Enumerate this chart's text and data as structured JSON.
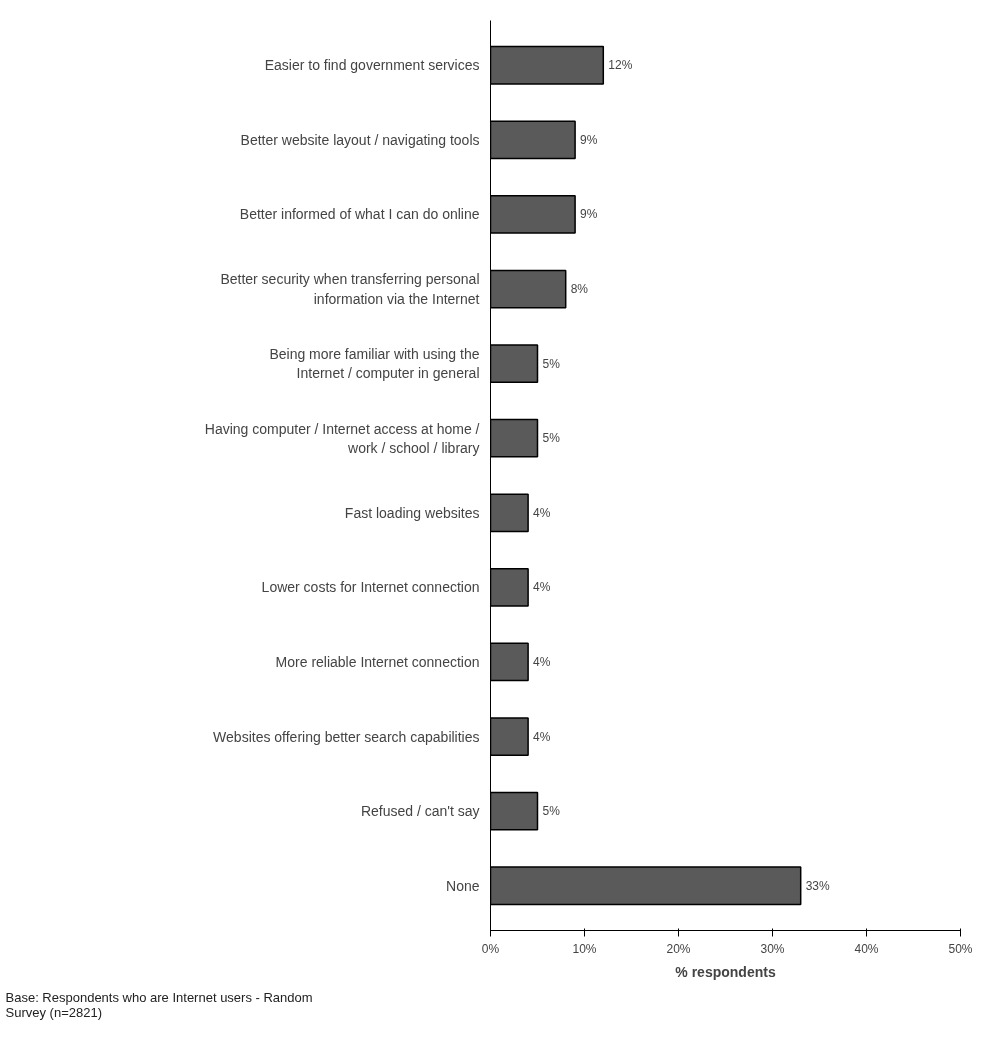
{
  "chart_data": {
    "type": "bar",
    "orientation": "horizontal",
    "xlabel": "% respondents",
    "categories": [
      "Easier to find government services",
      "Better website layout / navigating tools",
      "Better informed of what I can do online",
      "Better security when transferring personal\ninformation via the Internet",
      "Being more familiar with using the\nInternet / computer in general",
      "Having computer / Internet access at home /\nwork / school / library",
      "Fast loading websites",
      "Lower costs for Internet connection",
      "More reliable Internet connection",
      "Websites offering better search capabilities",
      "Refused / can't say",
      "None"
    ],
    "values": [
      12,
      9,
      9,
      8,
      5,
      5,
      4,
      4,
      4,
      4,
      5,
      33
    ],
    "value_labels": [
      "12%",
      "9%",
      "9%",
      "8%",
      "5%",
      "5%",
      "4%",
      "4%",
      "4%",
      "4%",
      "5%",
      "33%"
    ],
    "color": "#5a5a5a",
    "xlim": [
      0,
      50
    ],
    "xticks": [
      {
        "value": 0,
        "label": "0%"
      },
      {
        "value": 10,
        "label": "10%"
      },
      {
        "value": 20,
        "label": "20%"
      },
      {
        "value": 30,
        "label": "30%"
      },
      {
        "value": 40,
        "label": "40%"
      },
      {
        "value": 50,
        "label": "50%"
      }
    ],
    "grid": false,
    "annotations": [
      "Base: Respondents who are Internet users - Random\nSurvey (n=2821)"
    ]
  }
}
